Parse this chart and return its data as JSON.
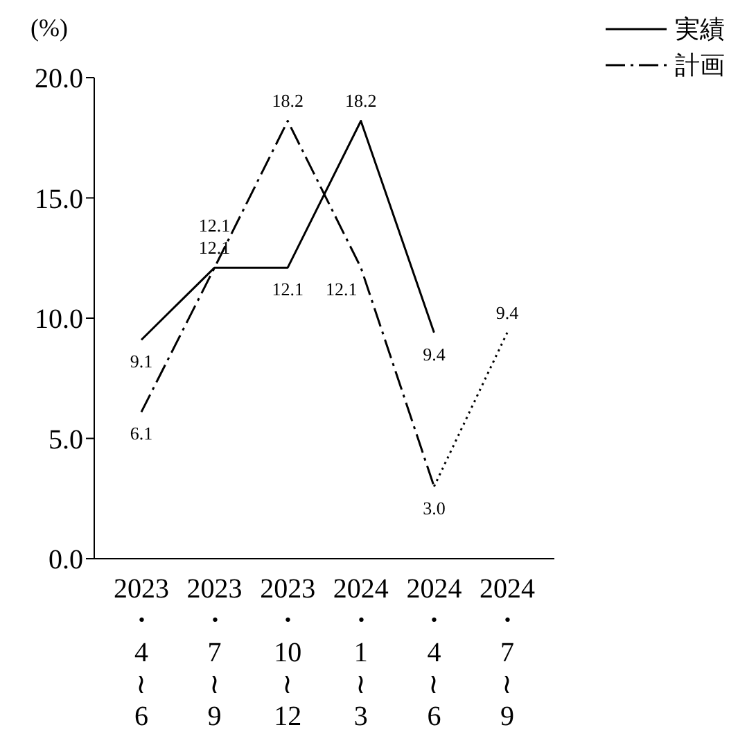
{
  "chart_data": {
    "type": "line",
    "ylabel": "(%)",
    "categories": [
      "2023\n・\n4\n≀\n6",
      "2023\n・\n7\n≀\n9",
      "2023\n・\n10\n≀\n12",
      "2024\n・\n1\n≀\n3",
      "2024\n・\n4\n≀\n6",
      "2024\n・\n7\n≀\n9"
    ],
    "series": [
      {
        "name": "実績",
        "color": "#000000",
        "line_style": "solid",
        "values": [
          9.1,
          12.1,
          12.1,
          18.2,
          9.4,
          null
        ],
        "value_labels": [
          "9.1",
          "12.1",
          "12.1",
          "18.2",
          "9.4",
          null
        ]
      },
      {
        "name": "計画",
        "color": "#000000",
        "line_style": "dashdot",
        "values": [
          6.1,
          12.1,
          18.2,
          12.1,
          3.0,
          null
        ],
        "value_labels": [
          "6.1",
          "12.1",
          "18.2",
          "12.1",
          "3.0",
          null
        ]
      },
      {
        "color": "#000000",
        "line_style": "dotted",
        "values": [
          null,
          null,
          null,
          null,
          3.0,
          9.4
        ],
        "value_labels": [
          null,
          null,
          null,
          null,
          null,
          "9.4"
        ]
      }
    ],
    "ylim": [
      0,
      20
    ],
    "yticks": [
      {
        "value": 0,
        "label": "0.0"
      },
      {
        "value": 5,
        "label": "5.0"
      },
      {
        "value": 10,
        "label": "10.0"
      },
      {
        "value": 15,
        "label": "15.0"
      },
      {
        "value": 20,
        "label": "20.0"
      }
    ],
    "grid": false,
    "legend": "top right",
    "marker": "none"
  }
}
